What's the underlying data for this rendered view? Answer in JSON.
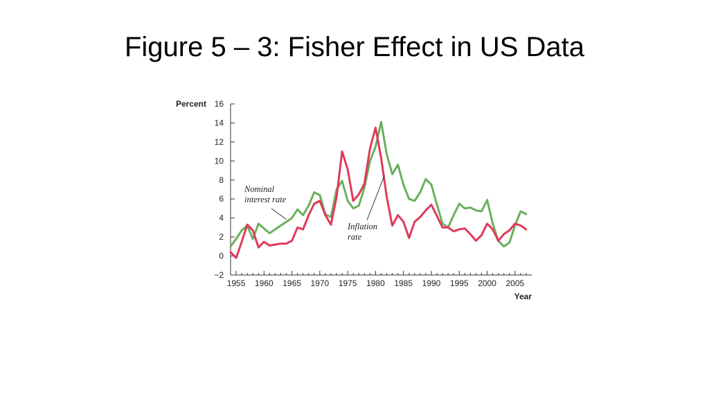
{
  "slide": {
    "title": "Figure 5 – 3: Fisher Effect in US Data"
  },
  "chart_data": {
    "type": "line",
    "title": "Figure 5 – 3: Fisher Effect in US Data",
    "xlabel": "Year",
    "ylabel": "Percent",
    "xlim": [
      1954,
      2008
    ],
    "ylim": [
      -2,
      16
    ],
    "xticks": [
      1955,
      1960,
      1965,
      1970,
      1975,
      1980,
      1985,
      1990,
      1995,
      2000,
      2005
    ],
    "yticks": [
      -2,
      0,
      2,
      4,
      6,
      8,
      10,
      12,
      14,
      16
    ],
    "ytick_labels": [
      "−2",
      "0",
      "2",
      "4",
      "6",
      "8",
      "10",
      "12",
      "14",
      "16"
    ],
    "grid": false,
    "legend": "none",
    "series": [
      {
        "name": "Nominal interest rate",
        "color": "#6aaf5c",
        "x": [
          1954,
          1955,
          1956,
          1957,
          1958,
          1959,
          1960,
          1961,
          1962,
          1963,
          1964,
          1965,
          1966,
          1967,
          1968,
          1969,
          1970,
          1971,
          1972,
          1973,
          1974,
          1975,
          1976,
          1977,
          1978,
          1979,
          1980,
          1981,
          1982,
          1983,
          1984,
          1985,
          1986,
          1987,
          1988,
          1989,
          1990,
          1991,
          1992,
          1993,
          1994,
          1995,
          1996,
          1997,
          1998,
          1999,
          2000,
          2001,
          2002,
          2003,
          2004,
          2005,
          2006,
          2007
        ],
        "values": [
          1.0,
          1.8,
          2.7,
          3.2,
          1.8,
          3.4,
          2.9,
          2.4,
          2.8,
          3.2,
          3.6,
          4.0,
          4.9,
          4.3,
          5.3,
          6.7,
          6.4,
          4.4,
          4.1,
          7.0,
          7.9,
          5.8,
          5.0,
          5.3,
          7.2,
          10.0,
          11.5,
          14.1,
          10.7,
          8.6,
          9.6,
          7.5,
          6.0,
          5.8,
          6.7,
          8.1,
          7.5,
          5.4,
          3.4,
          3.0,
          4.3,
          5.5,
          5.0,
          5.1,
          4.8,
          4.7,
          5.9,
          3.4,
          1.6,
          1.0,
          1.4,
          3.2,
          4.7,
          4.4
        ]
      },
      {
        "name": "Inflation rate",
        "color": "#e0395a",
        "x": [
          1954,
          1955,
          1956,
          1957,
          1958,
          1959,
          1960,
          1961,
          1962,
          1963,
          1964,
          1965,
          1966,
          1967,
          1968,
          1969,
          1970,
          1971,
          1972,
          1973,
          1974,
          1975,
          1976,
          1977,
          1978,
          1979,
          1980,
          1981,
          1982,
          1983,
          1984,
          1985,
          1986,
          1987,
          1988,
          1989,
          1990,
          1991,
          1992,
          1993,
          1994,
          1995,
          1996,
          1997,
          1998,
          1999,
          2000,
          2001,
          2002,
          2003,
          2004,
          2005,
          2006,
          2007
        ],
        "values": [
          0.4,
          -0.2,
          1.5,
          3.3,
          2.7,
          0.9,
          1.5,
          1.1,
          1.2,
          1.3,
          1.3,
          1.6,
          3.0,
          2.8,
          4.3,
          5.5,
          5.8,
          4.3,
          3.3,
          6.2,
          11.0,
          9.1,
          5.8,
          6.5,
          7.6,
          11.3,
          13.5,
          10.3,
          6.2,
          3.2,
          4.3,
          3.6,
          1.9,
          3.6,
          4.1,
          4.8,
          5.4,
          4.2,
          3.0,
          3.0,
          2.6,
          2.8,
          2.9,
          2.3,
          1.6,
          2.2,
          3.4,
          2.8,
          1.6,
          2.3,
          2.7,
          3.4,
          3.2,
          2.8
        ]
      }
    ],
    "annotations": [
      {
        "text_lines": [
          "Nominal",
          "interest rate"
        ],
        "series": "Nominal interest rate"
      },
      {
        "text_lines": [
          "Inflation",
          "rate"
        ],
        "series": "Inflation rate"
      }
    ]
  }
}
